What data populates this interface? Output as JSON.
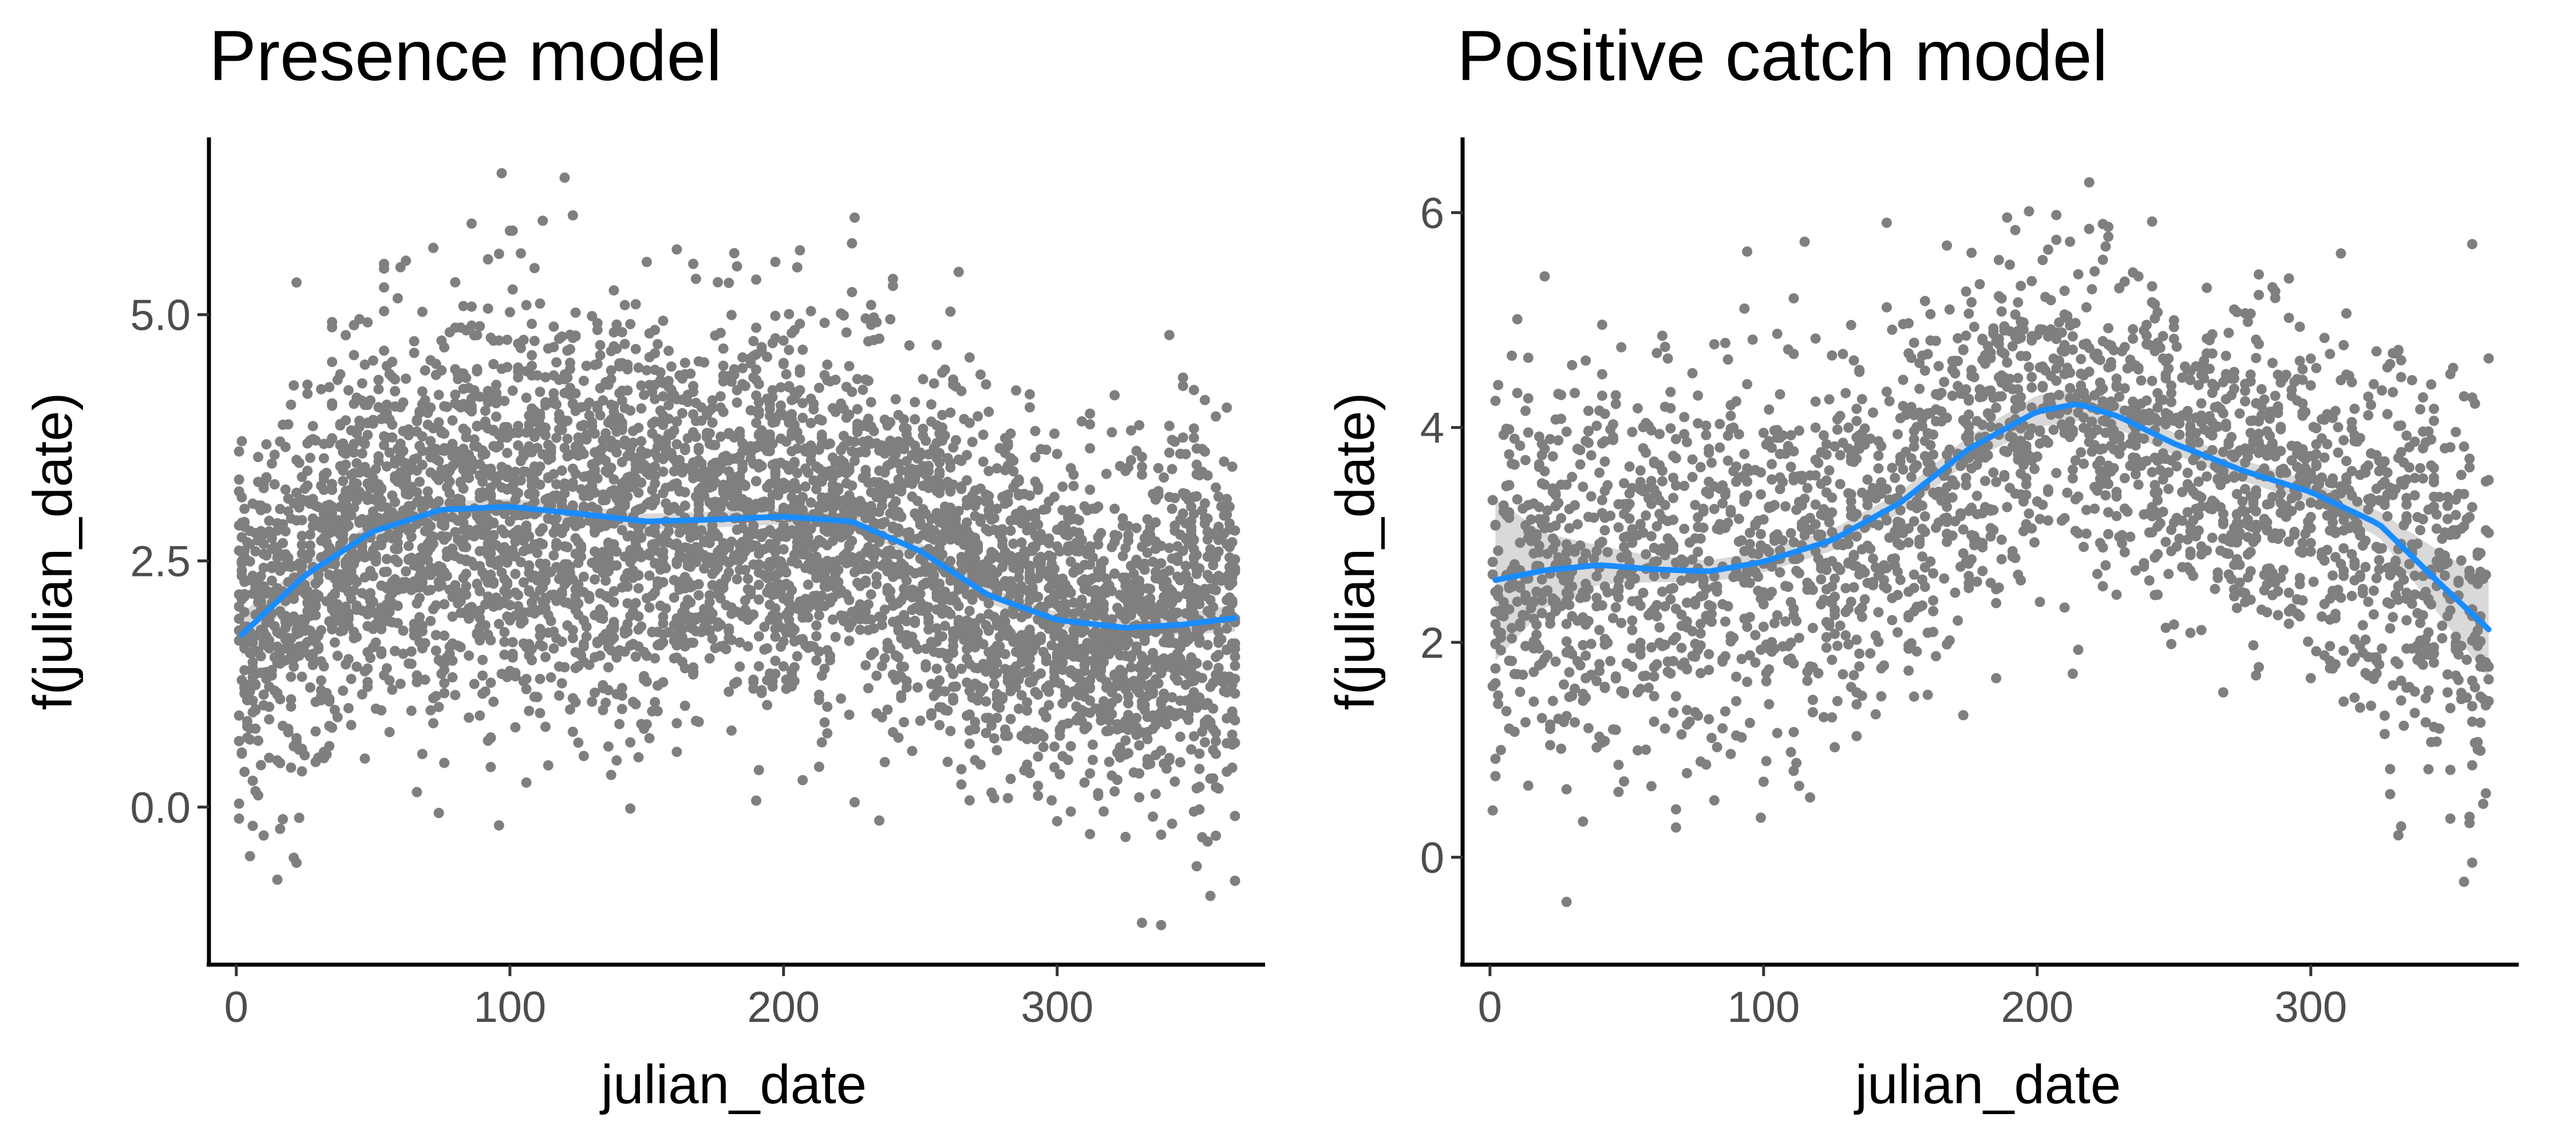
{
  "colors": {
    "points": "#7f7f7f",
    "smooth_line": "#1a8cff",
    "ribbon": "#d9d9d9",
    "axis": "#000000",
    "tick_text": "#4d4d4d"
  },
  "chart_data": [
    {
      "type": "scatter",
      "title": "Presence model",
      "xlabel": "julian_date",
      "ylabel": "f(julian_date)",
      "xlim": [
        -10,
        376
      ],
      "ylim": [
        -1.6,
        6.8
      ],
      "x_ticks": [
        0,
        100,
        200,
        300
      ],
      "x_tick_labels": [
        "0",
        "100",
        "200",
        "300"
      ],
      "y_ticks": [
        0.0,
        2.5,
        5.0
      ],
      "y_tick_labels": [
        "0.0",
        "2.5",
        "5.0"
      ],
      "grid": false,
      "legend": "none",
      "scatter_point_count": 5000,
      "smooth": {
        "x": [
          2,
          25,
          50,
          75,
          100,
          125,
          150,
          175,
          200,
          225,
          250,
          275,
          300,
          325,
          345,
          365
        ],
        "y": [
          1.75,
          2.35,
          2.8,
          3.02,
          3.05,
          2.98,
          2.9,
          2.92,
          2.95,
          2.9,
          2.6,
          2.15,
          1.9,
          1.82,
          1.85,
          1.92
        ],
        "ci_half_width": [
          0.22,
          0.12,
          0.09,
          0.08,
          0.08,
          0.08,
          0.08,
          0.08,
          0.08,
          0.08,
          0.08,
          0.08,
          0.08,
          0.08,
          0.1,
          0.14
        ]
      },
      "scatter_spread": {
        "x": [
          2,
          50,
          100,
          150,
          200,
          250,
          300,
          340,
          365
        ],
        "sd": [
          0.9,
          1.0,
          1.05,
          1.05,
          1.0,
          0.95,
          0.8,
          0.85,
          0.9
        ]
      }
    },
    {
      "type": "scatter",
      "title": "Positive catch model",
      "xlabel": "julian_date",
      "ylabel": "f(julian_date)",
      "xlim": [
        -10,
        376
      ],
      "ylim": [
        -1.0,
        6.7
      ],
      "x_ticks": [
        0,
        100,
        200,
        300
      ],
      "x_tick_labels": [
        "0",
        "100",
        "200",
        "300"
      ],
      "y_ticks": [
        0,
        2,
        4,
        6
      ],
      "y_tick_labels": [
        "0",
        "2",
        "4",
        "6"
      ],
      "grid": false,
      "legend": "none",
      "scatter_point_count": 2600,
      "smooth": {
        "x": [
          2,
          20,
          40,
          60,
          80,
          100,
          125,
          150,
          175,
          200,
          215,
          230,
          250,
          275,
          300,
          325,
          345,
          365
        ],
        "y": [
          2.58,
          2.67,
          2.72,
          2.68,
          2.66,
          2.75,
          2.95,
          3.3,
          3.8,
          4.15,
          4.22,
          4.1,
          3.85,
          3.6,
          3.4,
          3.1,
          2.6,
          2.12
        ],
        "ci_half_width": [
          0.75,
          0.35,
          0.18,
          0.12,
          0.1,
          0.1,
          0.1,
          0.1,
          0.12,
          0.15,
          0.15,
          0.12,
          0.1,
          0.1,
          0.1,
          0.12,
          0.28,
          0.45
        ]
      },
      "scatter_spread": {
        "x": [
          2,
          50,
          100,
          150,
          200,
          250,
          300,
          340,
          365
        ],
        "sd": [
          0.9,
          0.95,
          0.95,
          0.95,
          0.8,
          0.75,
          0.8,
          0.95,
          1.05
        ]
      }
    }
  ]
}
